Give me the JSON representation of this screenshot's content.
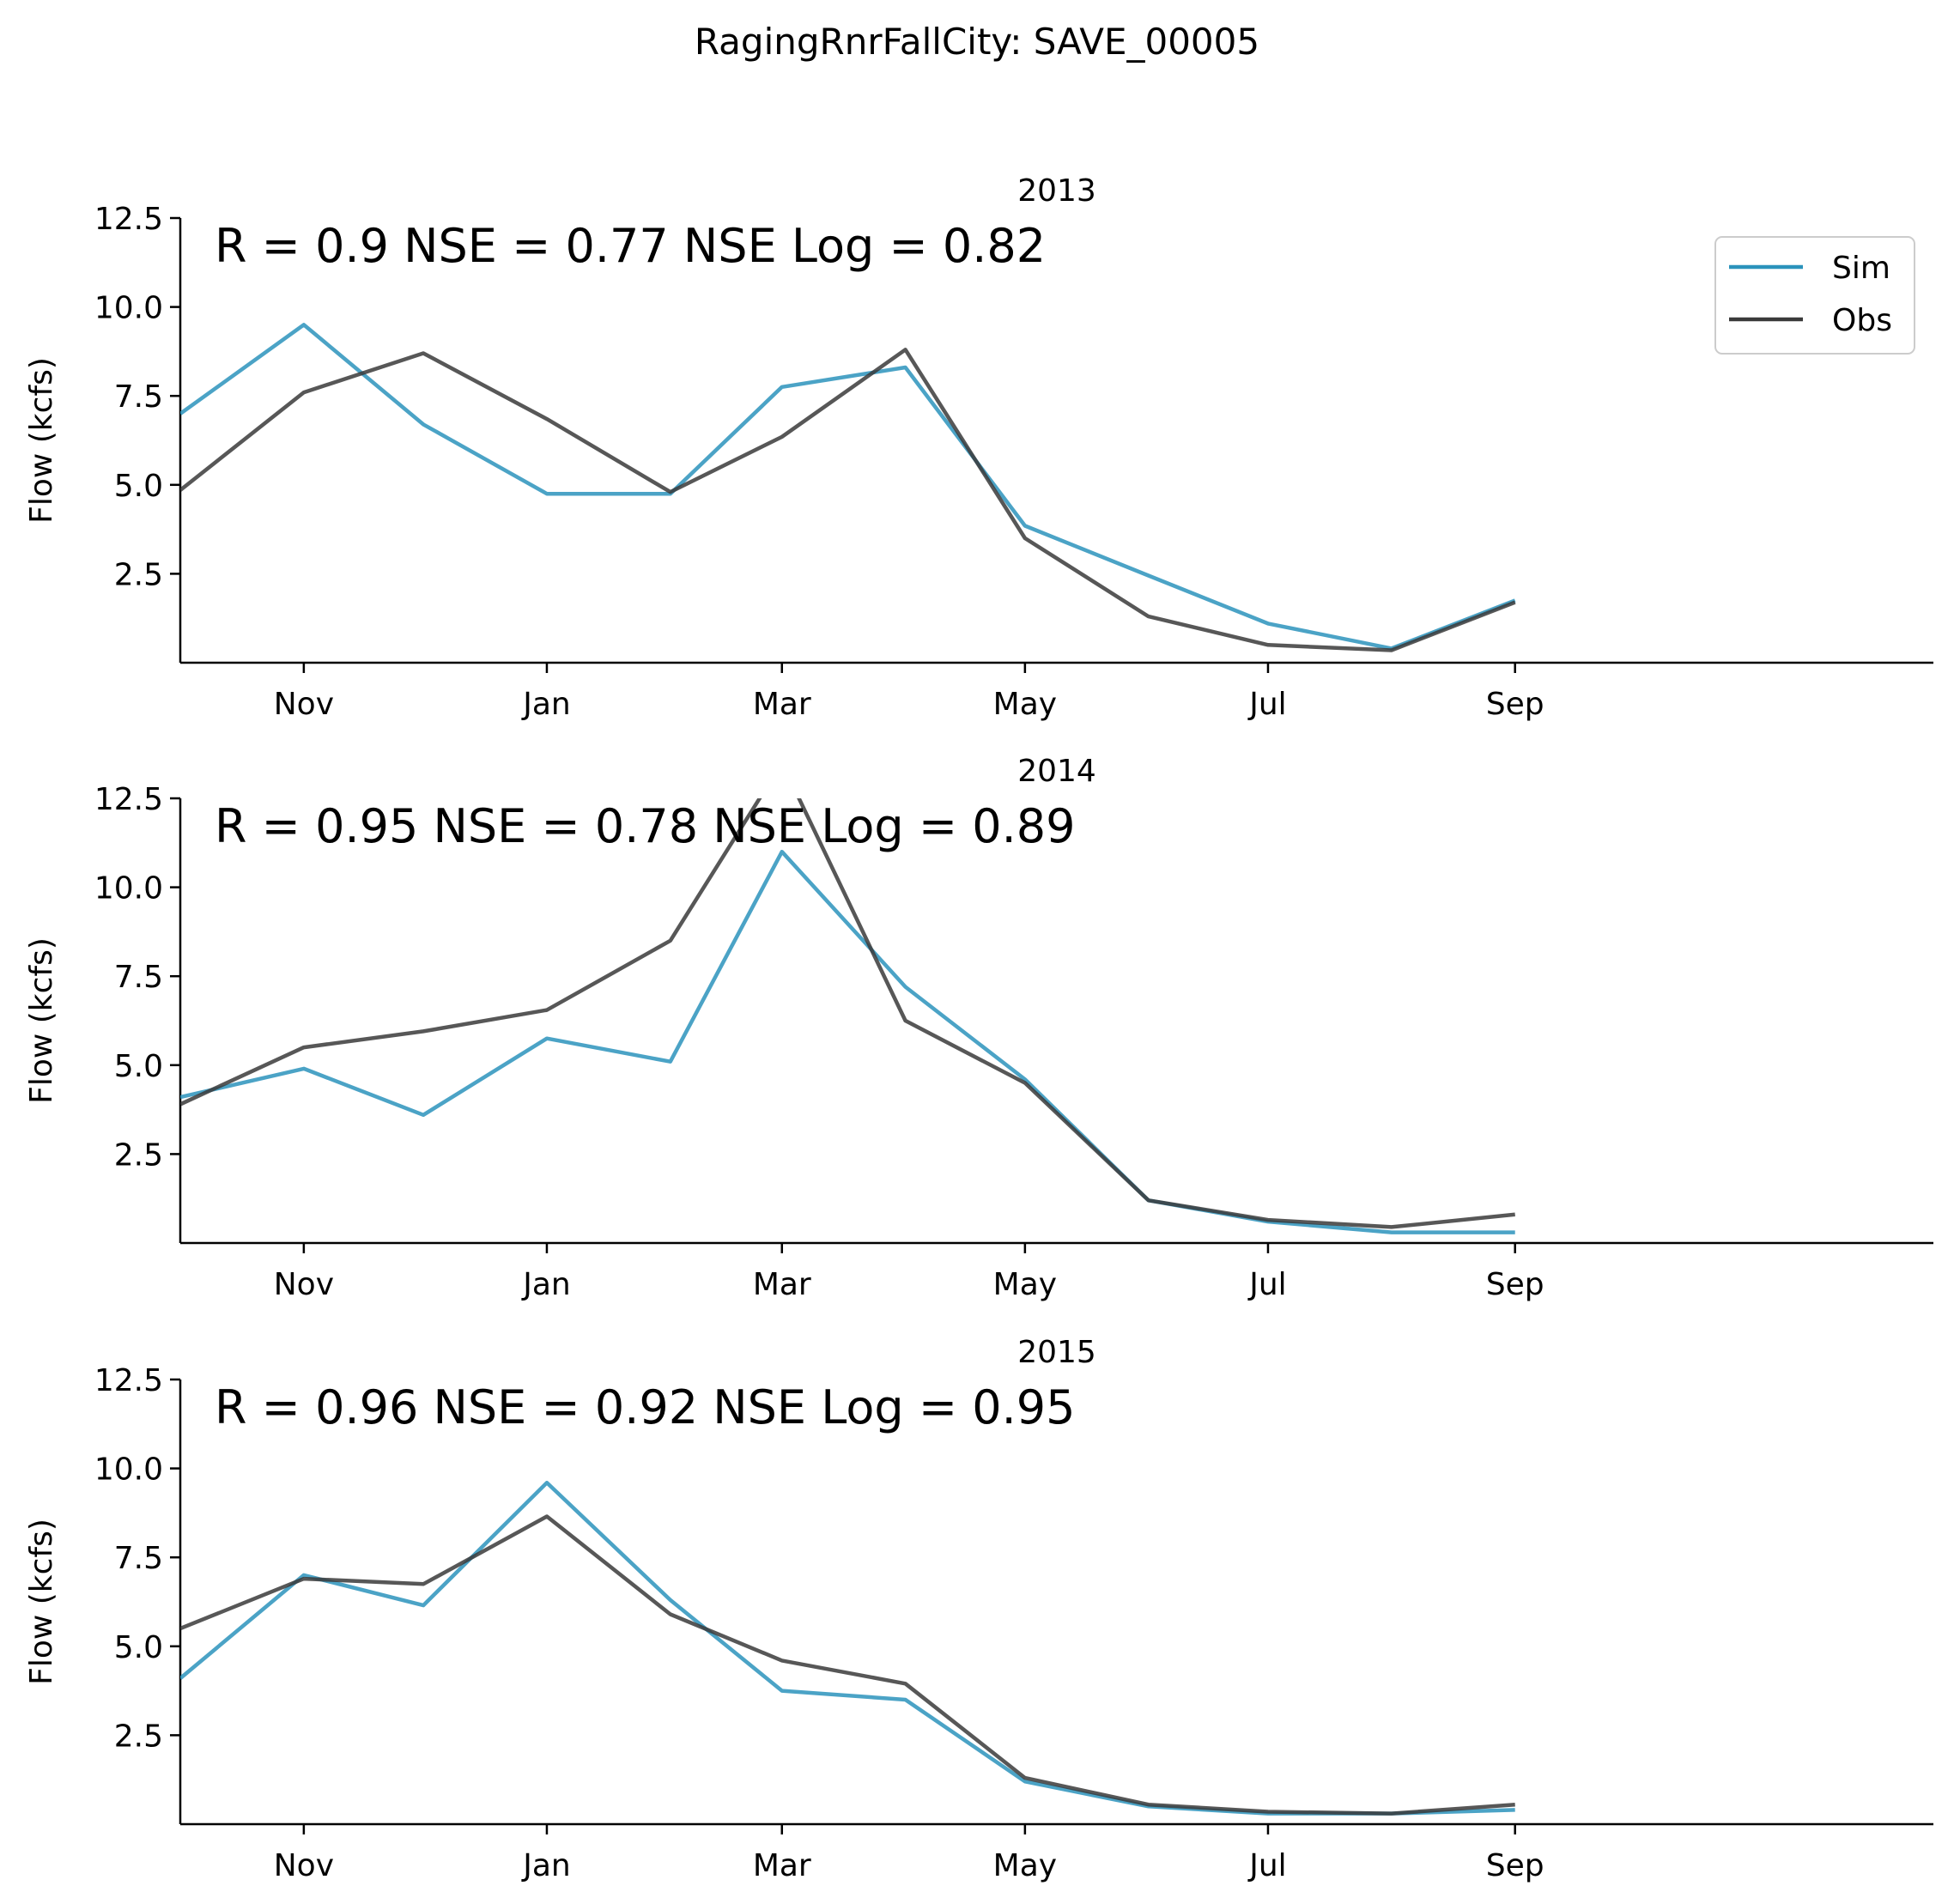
{
  "figure": {
    "title": "RagingRnrFallCity: SAVE_00005"
  },
  "colors": {
    "sim": "#2b93bc",
    "obs": "#3a3a3a"
  },
  "chart_data": [
    {
      "type": "line",
      "title": "2013",
      "stats": "R = 0.9  NSE = 0.77  NSE Log = 0.82",
      "ylabel": "Flow (kcfs)",
      "ylim": [
        0,
        12.5
      ],
      "yticks": [
        "2.5",
        "5.0",
        "7.5",
        "10.0",
        "12.5"
      ],
      "xticks": [
        "Nov",
        "Jan",
        "Mar",
        "May",
        "Jul",
        "Sep"
      ],
      "x": [
        "Oct",
        "Nov",
        "Dec",
        "Jan",
        "Feb",
        "Mar",
        "Apr",
        "May",
        "Jun",
        "Jul",
        "Aug",
        "Sep"
      ],
      "series": [
        {
          "name": "Sim",
          "values": [
            7.0,
            9.5,
            6.7,
            4.75,
            4.75,
            7.75,
            8.3,
            3.85,
            2.45,
            1.1,
            0.4,
            1.75
          ]
        },
        {
          "name": "Obs",
          "values": [
            4.85,
            7.6,
            8.7,
            6.85,
            4.8,
            6.35,
            8.8,
            3.5,
            1.3,
            0.5,
            0.35,
            1.7
          ]
        }
      ],
      "legend": "top-right",
      "grid": false
    },
    {
      "type": "line",
      "title": "2014",
      "stats": "R = 0.95  NSE = 0.78  NSE Log = 0.89",
      "ylabel": "Flow (kcfs)",
      "ylim": [
        0,
        12.5
      ],
      "yticks": [
        "2.5",
        "5.0",
        "7.5",
        "10.0",
        "12.5"
      ],
      "xticks": [
        "Nov",
        "Jan",
        "Mar",
        "May",
        "Jul",
        "Sep"
      ],
      "x": [
        "Oct",
        "Nov",
        "Dec",
        "Jan",
        "Feb",
        "Mar",
        "Apr",
        "May",
        "Jun",
        "Jul",
        "Aug",
        "Sep"
      ],
      "series": [
        {
          "name": "Sim",
          "values": [
            4.1,
            4.9,
            3.6,
            5.75,
            5.1,
            11.0,
            7.2,
            4.6,
            1.2,
            0.6,
            0.3,
            0.3
          ]
        },
        {
          "name": "Obs",
          "values": [
            3.9,
            5.5,
            5.95,
            6.55,
            8.5,
            13.5,
            6.25,
            4.5,
            1.2,
            0.65,
            0.45,
            0.8
          ]
        }
      ],
      "legend": "none",
      "grid": false
    },
    {
      "type": "line",
      "title": "2015",
      "stats": "R = 0.96  NSE = 0.92  NSE Log = 0.95",
      "ylabel": "Flow (kcfs)",
      "ylim": [
        0,
        12.5
      ],
      "yticks": [
        "2.5",
        "5.0",
        "7.5",
        "10.0",
        "12.5"
      ],
      "xticks": [
        "Nov",
        "Jan",
        "Mar",
        "May",
        "Jul",
        "Sep"
      ],
      "x": [
        "Oct",
        "Nov",
        "Dec",
        "Jan",
        "Feb",
        "Mar",
        "Apr",
        "May",
        "Jun",
        "Jul",
        "Aug",
        "Sep"
      ],
      "series": [
        {
          "name": "Sim",
          "values": [
            4.1,
            7.0,
            6.15,
            9.6,
            6.3,
            3.75,
            3.5,
            1.2,
            0.5,
            0.3,
            0.3,
            0.4
          ]
        },
        {
          "name": "Obs",
          "values": [
            5.5,
            6.9,
            6.75,
            8.65,
            5.9,
            4.6,
            3.95,
            1.3,
            0.55,
            0.35,
            0.3,
            0.55
          ]
        }
      ],
      "legend": "none",
      "grid": false
    }
  ]
}
